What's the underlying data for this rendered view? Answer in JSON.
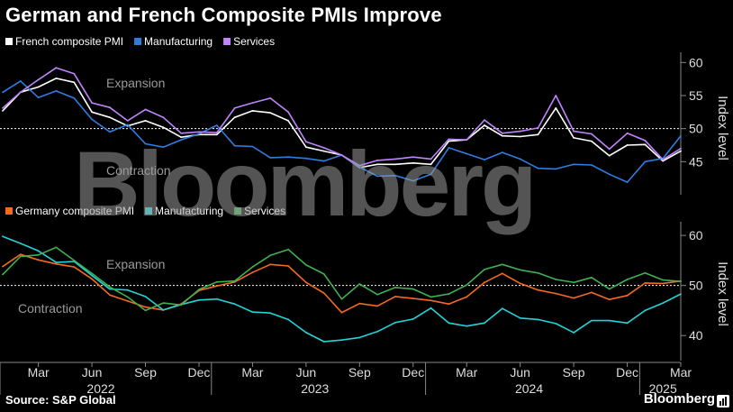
{
  "title": "German and French Composite PMIs Improve",
  "source": "Source: S&P Global",
  "brand": "Bloomberg",
  "watermark": "Bloomberg",
  "x_labels": {
    "months": [
      "Mar",
      "Jun",
      "Sep",
      "Dec",
      "Mar",
      "Jun",
      "Sep",
      "Dec",
      "Mar",
      "Jun",
      "Sep",
      "Dec",
      "Mar"
    ],
    "years": [
      "2022",
      "2023",
      "2024",
      "2025"
    ]
  },
  "chart_data": [
    {
      "type": "line",
      "ylabel": "Index level",
      "ylim": [
        40,
        61
      ],
      "yticks": [
        45,
        50,
        55,
        60
      ],
      "reference_line": 50,
      "zones": {
        "upper": "Expansion",
        "lower": "Contraction"
      },
      "x": [
        "2022-01",
        "2022-02",
        "2022-03",
        "2022-04",
        "2022-05",
        "2022-06",
        "2022-07",
        "2022-08",
        "2022-09",
        "2022-10",
        "2022-11",
        "2022-12",
        "2023-01",
        "2023-02",
        "2023-03",
        "2023-04",
        "2023-05",
        "2023-06",
        "2023-07",
        "2023-08",
        "2023-09",
        "2023-10",
        "2023-11",
        "2023-12",
        "2024-01",
        "2024-02",
        "2024-03",
        "2024-04",
        "2024-05",
        "2024-06",
        "2024-07",
        "2024-08",
        "2024-09",
        "2024-10",
        "2024-11",
        "2024-12",
        "2025-01",
        "2025-02",
        "2025-03"
      ],
      "series": [
        {
          "name": "French composite PMI",
          "color": "#ffffff",
          "values": [
            52.7,
            55.5,
            56.3,
            57.6,
            57.0,
            52.5,
            51.7,
            50.4,
            51.2,
            50.2,
            48.7,
            49.1,
            49.1,
            51.7,
            52.7,
            52.4,
            51.2,
            47.2,
            46.6,
            46.0,
            44.1,
            44.6,
            44.6,
            44.8,
            44.6,
            48.1,
            48.3,
            50.5,
            48.9,
            48.8,
            49.1,
            53.1,
            48.6,
            48.1,
            45.9,
            47.5,
            47.6,
            45.1,
            46.6
          ]
        },
        {
          "name": "Manufacturing",
          "color": "#2f7de1",
          "values": [
            55.5,
            57.2,
            54.7,
            55.7,
            54.6,
            51.4,
            49.5,
            50.6,
            47.7,
            47.2,
            48.3,
            49.2,
            50.5,
            47.4,
            47.3,
            45.6,
            45.7,
            45.5,
            45.1,
            46.0,
            44.2,
            42.8,
            42.9,
            42.1,
            43.1,
            47.1,
            46.2,
            45.3,
            46.4,
            45.4,
            44.0,
            43.9,
            44.6,
            44.5,
            43.1,
            41.9,
            45.0,
            45.5,
            48.9
          ]
        },
        {
          "name": "Services",
          "color": "#c084fc",
          "values": [
            53.1,
            55.5,
            57.4,
            59.2,
            58.3,
            53.9,
            53.2,
            51.2,
            52.9,
            51.7,
            49.3,
            49.5,
            49.4,
            53.1,
            53.9,
            54.6,
            52.5,
            48.0,
            47.1,
            46.0,
            44.4,
            45.2,
            45.4,
            45.7,
            45.4,
            48.4,
            48.3,
            51.3,
            49.3,
            49.6,
            50.1,
            55.0,
            49.6,
            49.2,
            46.9,
            49.3,
            48.2,
            45.3,
            47.0
          ]
        }
      ]
    },
    {
      "type": "line",
      "ylabel": "Index level",
      "ylim": [
        35,
        62
      ],
      "yticks": [
        40,
        50,
        60
      ],
      "reference_line": 50,
      "zones": {
        "upper": "Expansion",
        "lower": "Contraction"
      },
      "x": [
        "2022-01",
        "2022-02",
        "2022-03",
        "2022-04",
        "2022-05",
        "2022-06",
        "2022-07",
        "2022-08",
        "2022-09",
        "2022-10",
        "2022-11",
        "2022-12",
        "2023-01",
        "2023-02",
        "2023-03",
        "2023-04",
        "2023-05",
        "2023-06",
        "2023-07",
        "2023-08",
        "2023-09",
        "2023-10",
        "2023-11",
        "2023-12",
        "2024-01",
        "2024-02",
        "2024-03",
        "2024-04",
        "2024-05",
        "2024-06",
        "2024-07",
        "2024-08",
        "2024-09",
        "2024-10",
        "2024-11",
        "2024-12",
        "2025-01",
        "2025-02",
        "2025-03"
      ],
      "series": [
        {
          "name": "Germany composite PMI",
          "color": "#f26b21",
          "values": [
            53.8,
            56.2,
            55.1,
            54.3,
            53.7,
            51.3,
            48.1,
            46.9,
            45.7,
            45.1,
            46.3,
            49.0,
            49.9,
            50.7,
            52.6,
            54.2,
            53.9,
            50.6,
            48.5,
            44.6,
            46.4,
            45.9,
            47.8,
            47.4,
            47.0,
            46.3,
            47.7,
            50.6,
            52.4,
            50.4,
            49.1,
            48.4,
            47.5,
            48.6,
            47.2,
            48.0,
            50.5,
            50.4,
            50.9
          ]
        },
        {
          "name": "Manufacturing",
          "color": "#22d3d8",
          "values": [
            59.8,
            58.4,
            56.9,
            54.6,
            54.8,
            52.0,
            49.3,
            49.1,
            47.8,
            45.1,
            46.2,
            47.1,
            47.3,
            46.3,
            44.7,
            44.5,
            43.2,
            40.6,
            38.8,
            39.1,
            39.6,
            40.8,
            42.6,
            43.3,
            45.5,
            42.5,
            41.9,
            42.5,
            45.4,
            43.5,
            43.2,
            42.4,
            40.6,
            43.0,
            43.0,
            42.5,
            45.0,
            46.5,
            48.3
          ]
        },
        {
          "name": "Services",
          "color": "#3fb04f",
          "values": [
            52.2,
            55.8,
            56.1,
            57.6,
            55.0,
            52.4,
            49.7,
            47.7,
            45.0,
            46.5,
            46.1,
            49.2,
            50.7,
            50.9,
            53.7,
            56.0,
            57.2,
            54.1,
            52.3,
            47.3,
            50.3,
            48.2,
            49.6,
            49.3,
            47.7,
            48.3,
            50.1,
            53.2,
            54.2,
            53.1,
            52.5,
            51.2,
            50.6,
            51.6,
            49.3,
            51.2,
            52.5,
            51.1,
            50.8
          ]
        }
      ]
    }
  ]
}
